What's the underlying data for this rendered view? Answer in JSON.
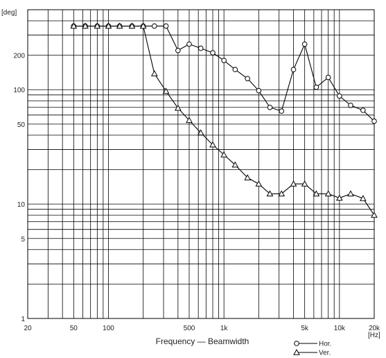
{
  "chart_data": {
    "type": "line",
    "xlabel": "Frequency — Beamwidth",
    "ylabel": "[deg]",
    "x_unit": "[Hz]",
    "x_scale": "log",
    "y_scale": "log",
    "xlim": [
      20,
      20000
    ],
    "ylim": [
      1,
      500
    ],
    "grid": true,
    "legend_position": "bottom-right",
    "x_tick_labels": [
      {
        "value": 20,
        "label": "20"
      },
      {
        "value": 50,
        "label": "50"
      },
      {
        "value": 100,
        "label": "100"
      },
      {
        "value": 500,
        "label": "500"
      },
      {
        "value": 1000,
        "label": "1k"
      },
      {
        "value": 5000,
        "label": "5k"
      },
      {
        "value": 10000,
        "label": "10k"
      },
      {
        "value": 20000,
        "label": "20k"
      }
    ],
    "y_tick_labels": [
      {
        "value": 1,
        "label": "1"
      },
      {
        "value": 5,
        "label": "5"
      },
      {
        "value": 10,
        "label": "10"
      },
      {
        "value": 50,
        "label": "50"
      },
      {
        "value": 100,
        "label": "100"
      },
      {
        "value": 200,
        "label": "200"
      }
    ],
    "series": [
      {
        "name": "Hor.",
        "marker": "circle",
        "color": "#000000",
        "x": [
          50,
          63,
          80,
          100,
          125,
          160,
          200,
          250,
          315,
          400,
          500,
          630,
          800,
          1000,
          1250,
          1600,
          2000,
          2500,
          3150,
          4000,
          5000,
          6300,
          8000,
          10000,
          12500,
          16000,
          20000
        ],
        "y": [
          360,
          360,
          360,
          360,
          360,
          360,
          360,
          360,
          360,
          220,
          250,
          230,
          210,
          180,
          150,
          125,
          98,
          70,
          65,
          150,
          250,
          105,
          128,
          88,
          73,
          66,
          53
        ]
      },
      {
        "name": "Ver.",
        "marker": "triangle",
        "color": "#000000",
        "x": [
          50,
          63,
          80,
          100,
          125,
          160,
          200,
          250,
          315,
          400,
          500,
          630,
          800,
          1000,
          1250,
          1600,
          2000,
          2500,
          3150,
          4000,
          5000,
          6300,
          8000,
          10000,
          12500,
          16000,
          20000
        ],
        "y": [
          360,
          360,
          360,
          360,
          360,
          360,
          360,
          138,
          97,
          69,
          54,
          42,
          33,
          27,
          22,
          17,
          15,
          12.3,
          12.3,
          15,
          15,
          12.3,
          12.3,
          11.3,
          12.3,
          11.2,
          8
        ]
      }
    ]
  }
}
